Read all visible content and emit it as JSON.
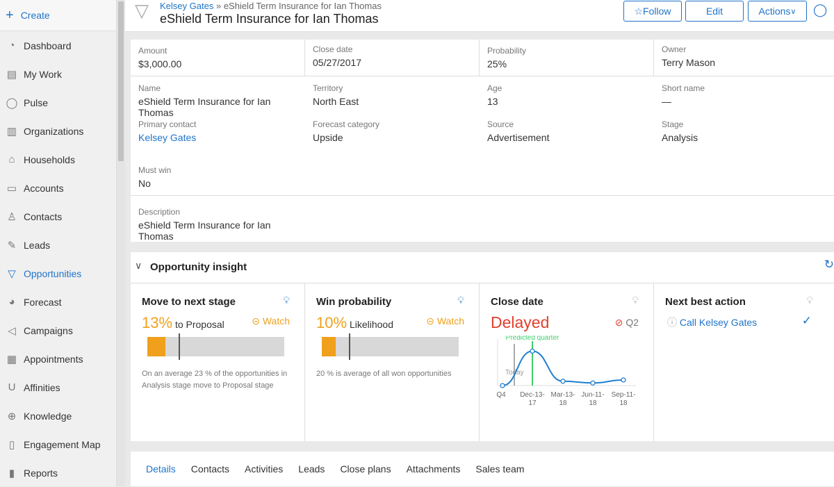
{
  "sidebar": {
    "create_label": "Create",
    "items": [
      {
        "label": "Dashboard",
        "icon": "gauge-icon"
      },
      {
        "label": "My Work",
        "icon": "inbox-icon"
      },
      {
        "label": "Pulse",
        "icon": "chat-bubble-icon"
      },
      {
        "label": "Organizations",
        "icon": "building-icon"
      },
      {
        "label": "Households",
        "icon": "house-icon"
      },
      {
        "label": "Accounts",
        "icon": "folder-icon"
      },
      {
        "label": "Contacts",
        "icon": "contact-card-icon"
      },
      {
        "label": "Leads",
        "icon": "pencil-icon"
      },
      {
        "label": "Opportunities",
        "icon": "funnel-icon",
        "active": true
      },
      {
        "label": "Forecast",
        "icon": "pie-icon"
      },
      {
        "label": "Campaigns",
        "icon": "megaphone-icon"
      },
      {
        "label": "Appointments",
        "icon": "calendar-icon"
      },
      {
        "label": "Affinities",
        "icon": "magnet-icon"
      },
      {
        "label": "Knowledge",
        "icon": "globe-icon"
      },
      {
        "label": "Engagement Map",
        "icon": "map-icon"
      },
      {
        "label": "Reports",
        "icon": "bar-chart-icon"
      }
    ]
  },
  "header": {
    "breadcrumb_link": "Kelsey Gates",
    "breadcrumb_sep": "»",
    "breadcrumb_current": "eShield Term Insurance for Ian Thomas",
    "title": "eShield Term Insurance for Ian Thomas",
    "follow_label": "Follow",
    "edit_label": "Edit",
    "actions_label": "Actions"
  },
  "summary": [
    {
      "label": "Amount",
      "value": "$3,000.00"
    },
    {
      "label": "Close date",
      "value": "05/27/2017"
    },
    {
      "label": "Probability",
      "value": "25%"
    },
    {
      "label": "Owner",
      "value": "Terry Mason"
    }
  ],
  "details": [
    {
      "label": "Name",
      "value": "eShield Term Insurance for Ian Thomas"
    },
    {
      "label": "Territory",
      "value": "North East"
    },
    {
      "label": "Age",
      "value": "13"
    },
    {
      "label": "Short name",
      "value": "—"
    },
    {
      "label": "Primary contact",
      "value": "Kelsey Gates",
      "link": true
    },
    {
      "label": "Forecast category",
      "value": "Upside"
    },
    {
      "label": "Source",
      "value": "Advertisement"
    },
    {
      "label": "Stage",
      "value": "Analysis"
    },
    {
      "label": "Must win",
      "value": "No"
    }
  ],
  "description": {
    "label": "Description",
    "value": "eShield Term Insurance for Ian Thomas"
  },
  "insight": {
    "title": "Opportunity insight",
    "next_stage": {
      "title": "Move to next stage",
      "percent": "13%",
      "to": "to",
      "target": "Proposal",
      "watch": "Watch",
      "progress": 13,
      "average_marker": 23,
      "note": "On an average 23 % of the opportunities in Analysis  stage move to Proposal  stage"
    },
    "win": {
      "title": "Win probability",
      "percent": "10%",
      "label": "Likelihood",
      "watch": "Watch",
      "progress": 10,
      "average_marker": 20,
      "note": "20 % is  average of all won opportunities"
    },
    "close": {
      "title": "Close date",
      "status": "Delayed",
      "status_color": "#e0402e",
      "quarter": "Q2"
    },
    "nba": {
      "title": "Next best action",
      "action": "Call Kelsey Gates"
    }
  },
  "chart_data": {
    "type": "line",
    "categories": [
      "Q4",
      "Dec-13-17",
      "Mar-13-18",
      "Jun-11-18",
      "Sep-11-18"
    ],
    "tick_lines": [
      [
        "Q4"
      ],
      [
        "Dec-13-",
        "17"
      ],
      [
        "Mar-13-",
        "18"
      ],
      [
        "Jun-11-",
        "18"
      ],
      [
        "Sep-11-",
        "18"
      ]
    ],
    "values": [
      0.0,
      0.8,
      0.1,
      0.06,
      0.13
    ],
    "annotations": {
      "today": "Today",
      "predicted": "Predicted quarter"
    },
    "color": "#1f7fd0",
    "predicted_color": "#3ecf6a",
    "grid": false
  },
  "tabs": [
    "Details",
    "Contacts",
    "Activities",
    "Leads",
    "Close plans",
    "Attachments",
    "Sales team"
  ]
}
